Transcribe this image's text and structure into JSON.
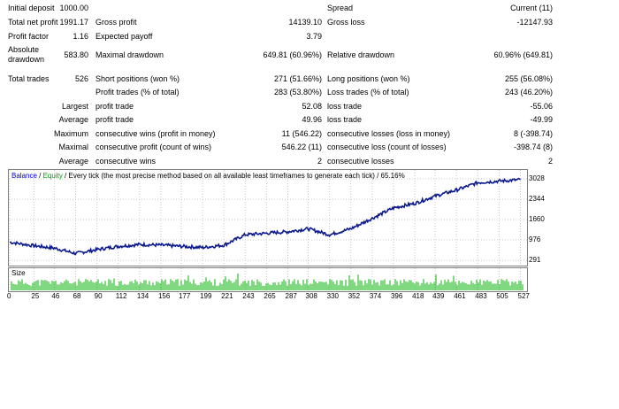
{
  "report": {
    "initial_deposit_label": "Initial deposit",
    "initial_deposit_value": "1000.00",
    "spread_label": "Spread",
    "spread_value": "Current (11)",
    "total_net_profit_label": "Total net profit",
    "total_net_profit_value": "1991.17",
    "gross_profit_label": "Gross profit",
    "gross_profit_value": "14139.10",
    "gross_loss_label": "Gross loss",
    "gross_loss_value": "-12147.93",
    "profit_factor_label": "Profit factor",
    "profit_factor_value": "1.16",
    "expected_payoff_label": "Expected payoff",
    "expected_payoff_value": "3.79",
    "absolute_drawdown_label_1": "Absolute",
    "absolute_drawdown_label_2": "drawdown",
    "absolute_drawdown_value": "583.80",
    "maximal_drawdown_label": "Maximal drawdown",
    "maximal_drawdown_value": "649.81 (60.96%)",
    "relative_drawdown_label": "Relative drawdown",
    "relative_drawdown_value": "60.96% (649.81)",
    "total_trades_label": "Total trades",
    "total_trades_value": "526",
    "short_positions_label": "Short positions (won %)",
    "short_positions_value": "271 (51.66%)",
    "long_positions_label": "Long positions (won %)",
    "long_positions_value": "255 (56.08%)",
    "profit_trades_label": "Profit trades (% of total)",
    "profit_trades_value": "283 (53.80%)",
    "loss_trades_label": "Loss trades (% of total)",
    "loss_trades_value": "243 (46.20%)",
    "largest_label": "Largest",
    "largest_profit_label": "profit trade",
    "largest_profit_value": "52.08",
    "largest_loss_label": "loss trade",
    "largest_loss_value": "-55.06",
    "average_label": "Average",
    "average_profit_label": "profit trade",
    "average_profit_value": "49.96",
    "average_loss_label": "loss trade",
    "average_loss_value": "-49.99",
    "maximum_label": "Maximum",
    "max_consec_wins_label": "consecutive wins (profit in money)",
    "max_consec_wins_value": "11 (546.22)",
    "max_consec_losses_label": "consecutive losses (loss in money)",
    "max_consec_losses_value": "8 (-398.74)",
    "maximal_label": "Maximal",
    "maximal_consec_profit_label": "consecutive profit (count of wins)",
    "maximal_consec_profit_value": "546.22 (11)",
    "maximal_consec_loss_label": "consecutive loss (count of losses)",
    "maximal_consec_loss_value": "-398.74 (8)",
    "average2_label": "Average",
    "avg_consec_wins_label": "consecutive wins",
    "avg_consec_wins_value": "2",
    "avg_consec_losses_label": "consecutive losses",
    "avg_consec_losses_value": "2"
  },
  "chart": {
    "legend_balance": "Balance",
    "legend_sep": " / ",
    "legend_equity": "Equity",
    "legend_rest": " / Every tick (the most precise method based on all available least timeframes to generate each tick) / 65.16%",
    "size_label": "Size",
    "balance_color": "#0d1a8c",
    "equity_color": "#00a000",
    "volume_color": "#00b000"
  },
  "chart_data": {
    "type": "line",
    "series": [
      {
        "name": "Balance",
        "x": [
          0,
          25,
          46,
          68,
          90,
          112,
          134,
          156,
          177,
          199,
          221,
          243,
          265,
          287,
          308,
          330,
          352,
          374,
          396,
          418,
          439,
          461,
          483,
          505,
          527
        ],
        "values": [
          900,
          780,
          700,
          520,
          650,
          760,
          820,
          800,
          760,
          720,
          800,
          1150,
          1200,
          1250,
          1350,
          1150,
          1350,
          1700,
          2050,
          2200,
          2450,
          2650,
          2900,
          2950,
          3000
        ]
      }
    ],
    "xlabel": "",
    "ylabel": "",
    "x_ticks": [
      "0",
      "25",
      "46",
      "68",
      "90",
      "112",
      "134",
      "156",
      "177",
      "199",
      "221",
      "243",
      "265",
      "287",
      "308",
      "330",
      "352",
      "374",
      "396",
      "418",
      "439",
      "461",
      "483",
      "505",
      "527"
    ],
    "y_ticks": [
      "3028",
      "2344",
      "1660",
      "976",
      "291"
    ],
    "ylim": [
      291,
      3028
    ],
    "xlim": [
      0,
      532
    ],
    "grid": true
  }
}
